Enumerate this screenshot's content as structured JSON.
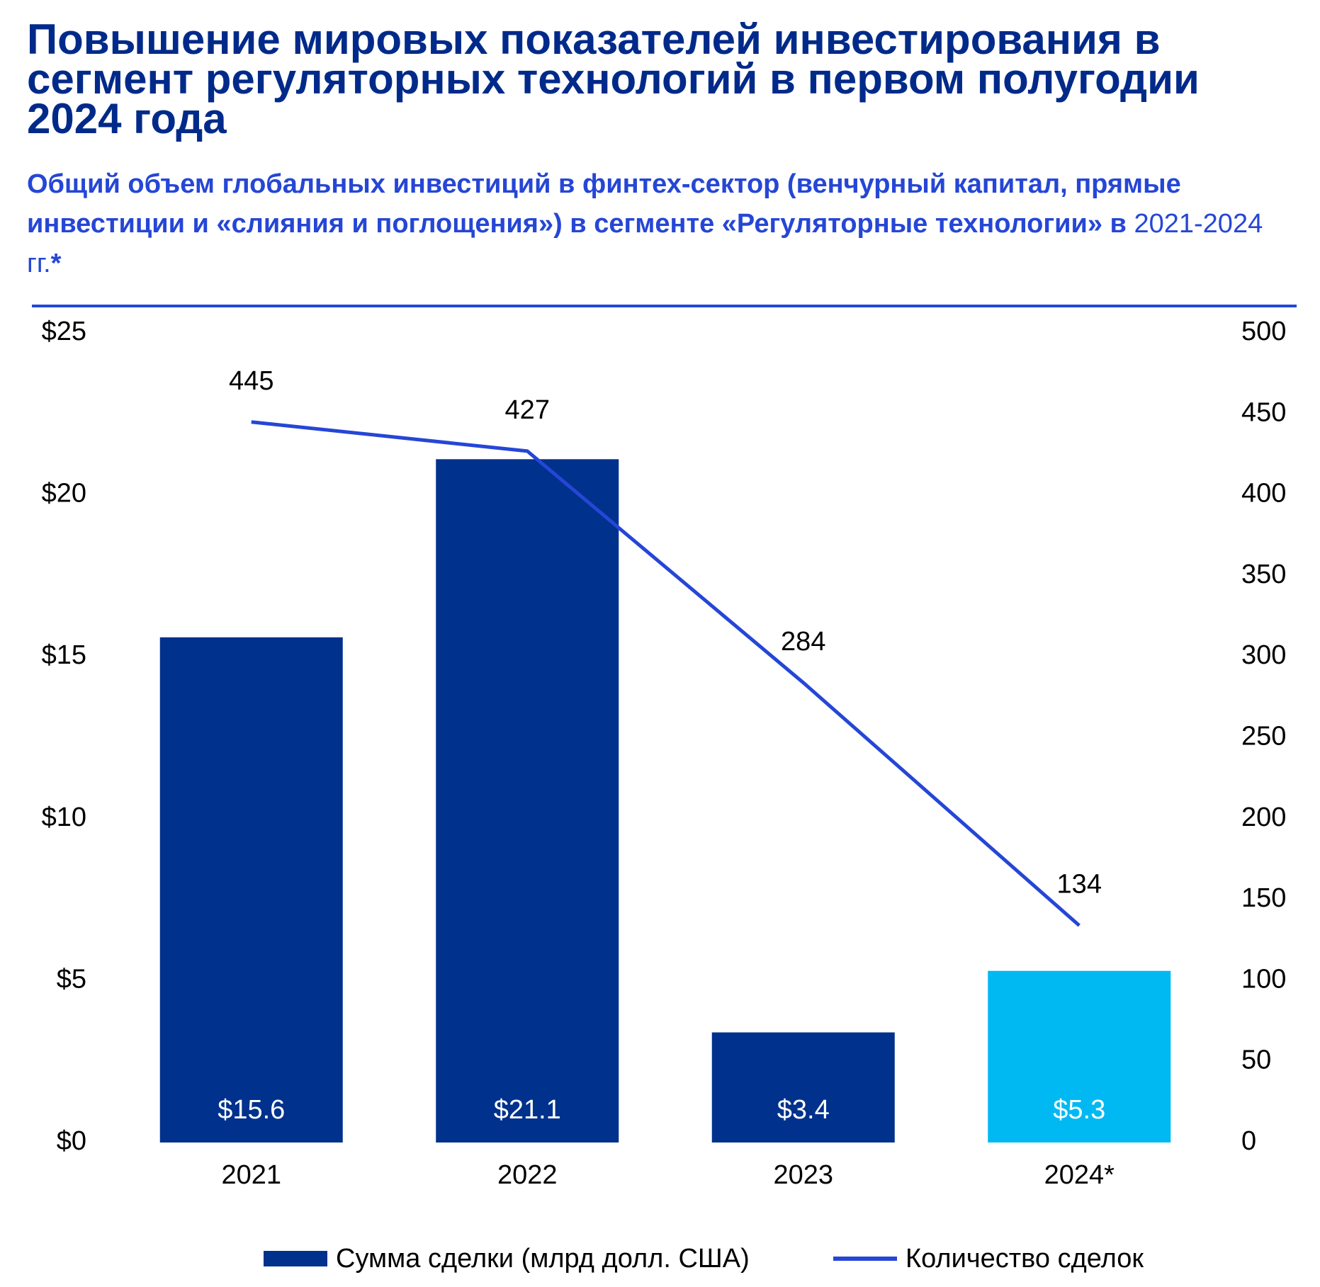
{
  "title": "Повышение мировых показателей инвестирования в сегмент регуляторных технологий в первом полугодии 2024 года",
  "subtitle": {
    "bold": "Общий объем глобальных инвестиций в финтех-сектор (венчурный капитал, прямые инвестиции и «слияния и поглощения») в сегменте «Регуляторные технологии» в ",
    "plain": "2021-2024 гг.",
    "suffix": "*"
  },
  "colors": {
    "title": "#002a8a",
    "subtitle": "#2546d6",
    "bar": "#00318c",
    "bar_highlight": "#00b9f2",
    "line": "#2546d6",
    "rule": "#2546d6"
  },
  "chart_data": {
    "type": "bar",
    "categories": [
      "2021",
      "2022",
      "2023",
      "2024*"
    ],
    "series": [
      {
        "name": "Сумма сделки (млрд долл. США)",
        "type": "bar",
        "axis": "left",
        "values": [
          15.6,
          21.1,
          3.4,
          5.3
        ],
        "labels": [
          "$15.6",
          "$21.1",
          "$3.4",
          "$5.3"
        ],
        "highlight_index": 3
      },
      {
        "name": "Количество сделок",
        "type": "line",
        "axis": "right",
        "values": [
          445,
          427,
          284,
          134
        ],
        "labels": [
          "445",
          "427",
          "284",
          "134"
        ]
      }
    ],
    "y_left": {
      "range": [
        0,
        25
      ],
      "ticks": [
        0,
        5,
        10,
        15,
        20,
        25
      ],
      "tick_labels": [
        "$0",
        "$5",
        "$10",
        "$15",
        "$20",
        "$25"
      ]
    },
    "y_right": {
      "range": [
        0,
        500
      ],
      "ticks": [
        0,
        50,
        100,
        150,
        200,
        250,
        300,
        350,
        400,
        450,
        500
      ],
      "tick_labels": [
        "0",
        "50",
        "100",
        "150",
        "200",
        "250",
        "300",
        "350",
        "400",
        "450",
        "500"
      ]
    },
    "grid": false,
    "legend_position": "bottom"
  }
}
